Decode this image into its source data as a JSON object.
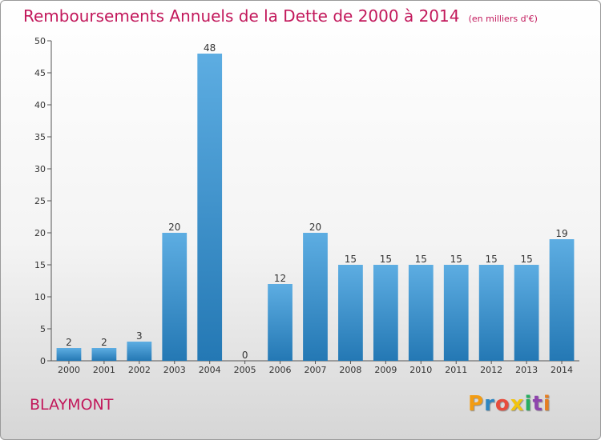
{
  "title": "Remboursements Annuels de la Dette de 2000 à 2014",
  "unit_note": "(en milliers d'€)",
  "commune": "BLAYMONT",
  "logo": {
    "letters": [
      "P",
      "r",
      "o",
      "x",
      "i",
      "t",
      "i"
    ],
    "colors": [
      "#f39c12",
      "#2e86c1",
      "#e74c3c",
      "#f1c40f",
      "#27ae60",
      "#8e44ad",
      "#e67e22"
    ]
  },
  "colors": {
    "title": "#c2185b",
    "bar_top": "#5dade2",
    "bar_bottom": "#2478b4"
  },
  "chart_data": {
    "type": "bar",
    "categories": [
      "2000",
      "2001",
      "2002",
      "2003",
      "2004",
      "2005",
      "2006",
      "2007",
      "2008",
      "2009",
      "2010",
      "2011",
      "2012",
      "2013",
      "2014"
    ],
    "values": [
      2,
      2,
      3,
      20,
      48,
      0,
      12,
      20,
      15,
      15,
      15,
      15,
      15,
      15,
      19
    ],
    "ylim": [
      0,
      50
    ],
    "yticks": [
      0,
      5,
      10,
      15,
      20,
      25,
      30,
      35,
      40,
      45,
      50
    ],
    "grid": false,
    "data_labels": true
  }
}
